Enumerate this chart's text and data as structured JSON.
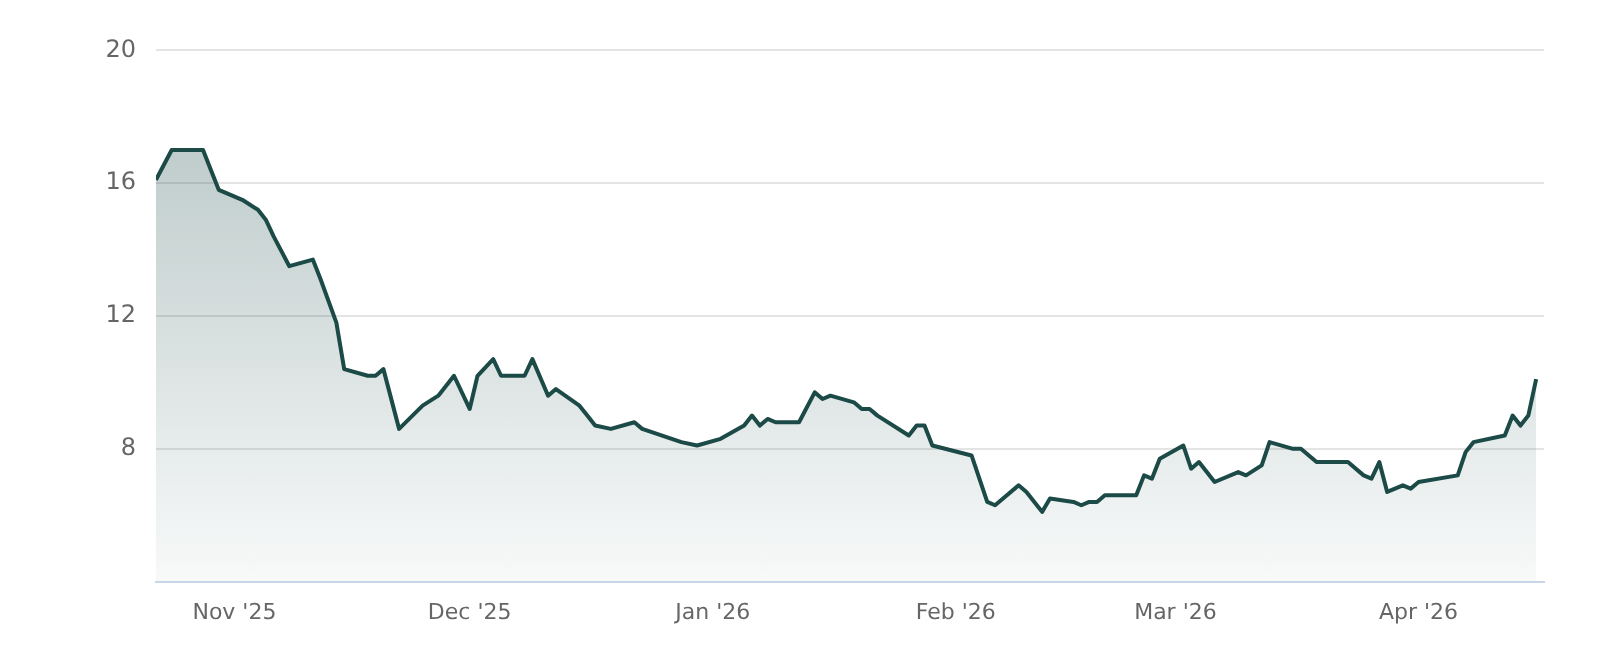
{
  "chart_data": {
    "type": "area",
    "color": "#1b4a47",
    "grid": "y",
    "legend": false,
    "xlim": [
      "2025-10-22",
      "2026-04-17"
    ],
    "xticks": [
      {
        "value": "2025-11-01",
        "label": "Nov '25"
      },
      {
        "value": "2025-12-01",
        "label": "Dec '25"
      },
      {
        "value": "2026-01-01",
        "label": "Jan '26"
      },
      {
        "value": "2026-02-01",
        "label": "Feb '26"
      },
      {
        "value": "2026-03-01",
        "label": "Mar '26"
      },
      {
        "value": "2026-04-01",
        "label": "Apr '26"
      }
    ],
    "ylim": [
      4,
      20
    ],
    "yticks": [
      8,
      12,
      16,
      20
    ],
    "x": [
      "2025-10-22",
      "2025-10-24",
      "2025-10-26",
      "2025-10-28",
      "2025-10-29",
      "2025-10-30",
      "2025-11-02",
      "2025-11-04",
      "2025-11-05",
      "2025-11-06",
      "2025-11-08",
      "2025-11-11",
      "2025-11-12",
      "2025-11-14",
      "2025-11-15",
      "2025-11-18",
      "2025-11-19",
      "2025-11-20",
      "2025-11-22",
      "2025-11-25",
      "2025-11-27",
      "2025-11-29",
      "2025-12-01",
      "2025-12-02",
      "2025-12-04",
      "2025-12-05",
      "2025-12-08",
      "2025-12-09",
      "2025-12-11",
      "2025-12-12",
      "2025-12-15",
      "2025-12-16",
      "2025-12-17",
      "2025-12-19",
      "2025-12-22",
      "2025-12-23",
      "2025-12-28",
      "2025-12-30",
      "2026-01-02",
      "2026-01-05",
      "2026-01-06",
      "2026-01-07",
      "2026-01-08",
      "2026-01-09",
      "2026-01-12",
      "2026-01-14",
      "2026-01-15",
      "2026-01-16",
      "2026-01-19",
      "2026-01-20",
      "2026-01-21",
      "2026-01-22",
      "2026-01-26",
      "2026-01-27",
      "2026-01-28",
      "2026-01-29",
      "2026-02-03",
      "2026-02-05",
      "2026-02-06",
      "2026-02-09",
      "2026-02-10",
      "2026-02-12",
      "2026-02-13",
      "2026-02-16",
      "2026-02-17",
      "2026-02-18",
      "2026-02-19",
      "2026-02-20",
      "2026-02-24",
      "2026-02-25",
      "2026-02-26",
      "2026-02-27",
      "2026-03-02",
      "2026-03-03",
      "2026-03-04",
      "2026-03-06",
      "2026-03-09",
      "2026-03-10",
      "2026-03-12",
      "2026-03-13",
      "2026-03-16",
      "2026-03-17",
      "2026-03-19",
      "2026-03-20",
      "2026-03-23",
      "2026-03-25",
      "2026-03-26",
      "2026-03-27",
      "2026-03-28",
      "2026-03-30",
      "2026-03-31",
      "2026-04-01",
      "2026-04-06",
      "2026-04-07",
      "2026-04-08",
      "2026-04-12",
      "2026-04-13",
      "2026-04-14",
      "2026-04-15",
      "2026-04-16"
    ],
    "values": [
      16.1,
      17.0,
      17.0,
      17.0,
      16.4,
      15.8,
      15.5,
      15.2,
      14.9,
      14.4,
      13.5,
      13.7,
      13.1,
      11.8,
      10.4,
      10.2,
      10.2,
      10.4,
      8.6,
      9.3,
      9.6,
      10.2,
      9.2,
      10.2,
      10.7,
      10.2,
      10.2,
      10.7,
      9.6,
      9.8,
      9.3,
      9.0,
      8.7,
      8.6,
      8.8,
      8.6,
      8.2,
      8.1,
      8.3,
      8.7,
      9.0,
      8.7,
      8.9,
      8.8,
      8.8,
      9.7,
      9.5,
      9.6,
      9.4,
      9.2,
      9.2,
      9.0,
      8.4,
      8.7,
      8.7,
      8.1,
      7.8,
      6.4,
      6.3,
      6.9,
      6.7,
      6.1,
      6.5,
      6.4,
      6.3,
      6.4,
      6.4,
      6.6,
      6.6,
      7.2,
      7.1,
      7.7,
      8.1,
      7.4,
      7.6,
      7.0,
      7.3,
      7.2,
      7.5,
      8.2,
      8.0,
      8.0,
      7.6,
      7.6,
      7.6,
      7.2,
      7.1,
      7.6,
      6.7,
      6.9,
      6.8,
      7.0,
      7.2,
      7.9,
      8.2,
      8.4,
      9.0,
      8.7,
      9.0,
      10.1
    ]
  }
}
